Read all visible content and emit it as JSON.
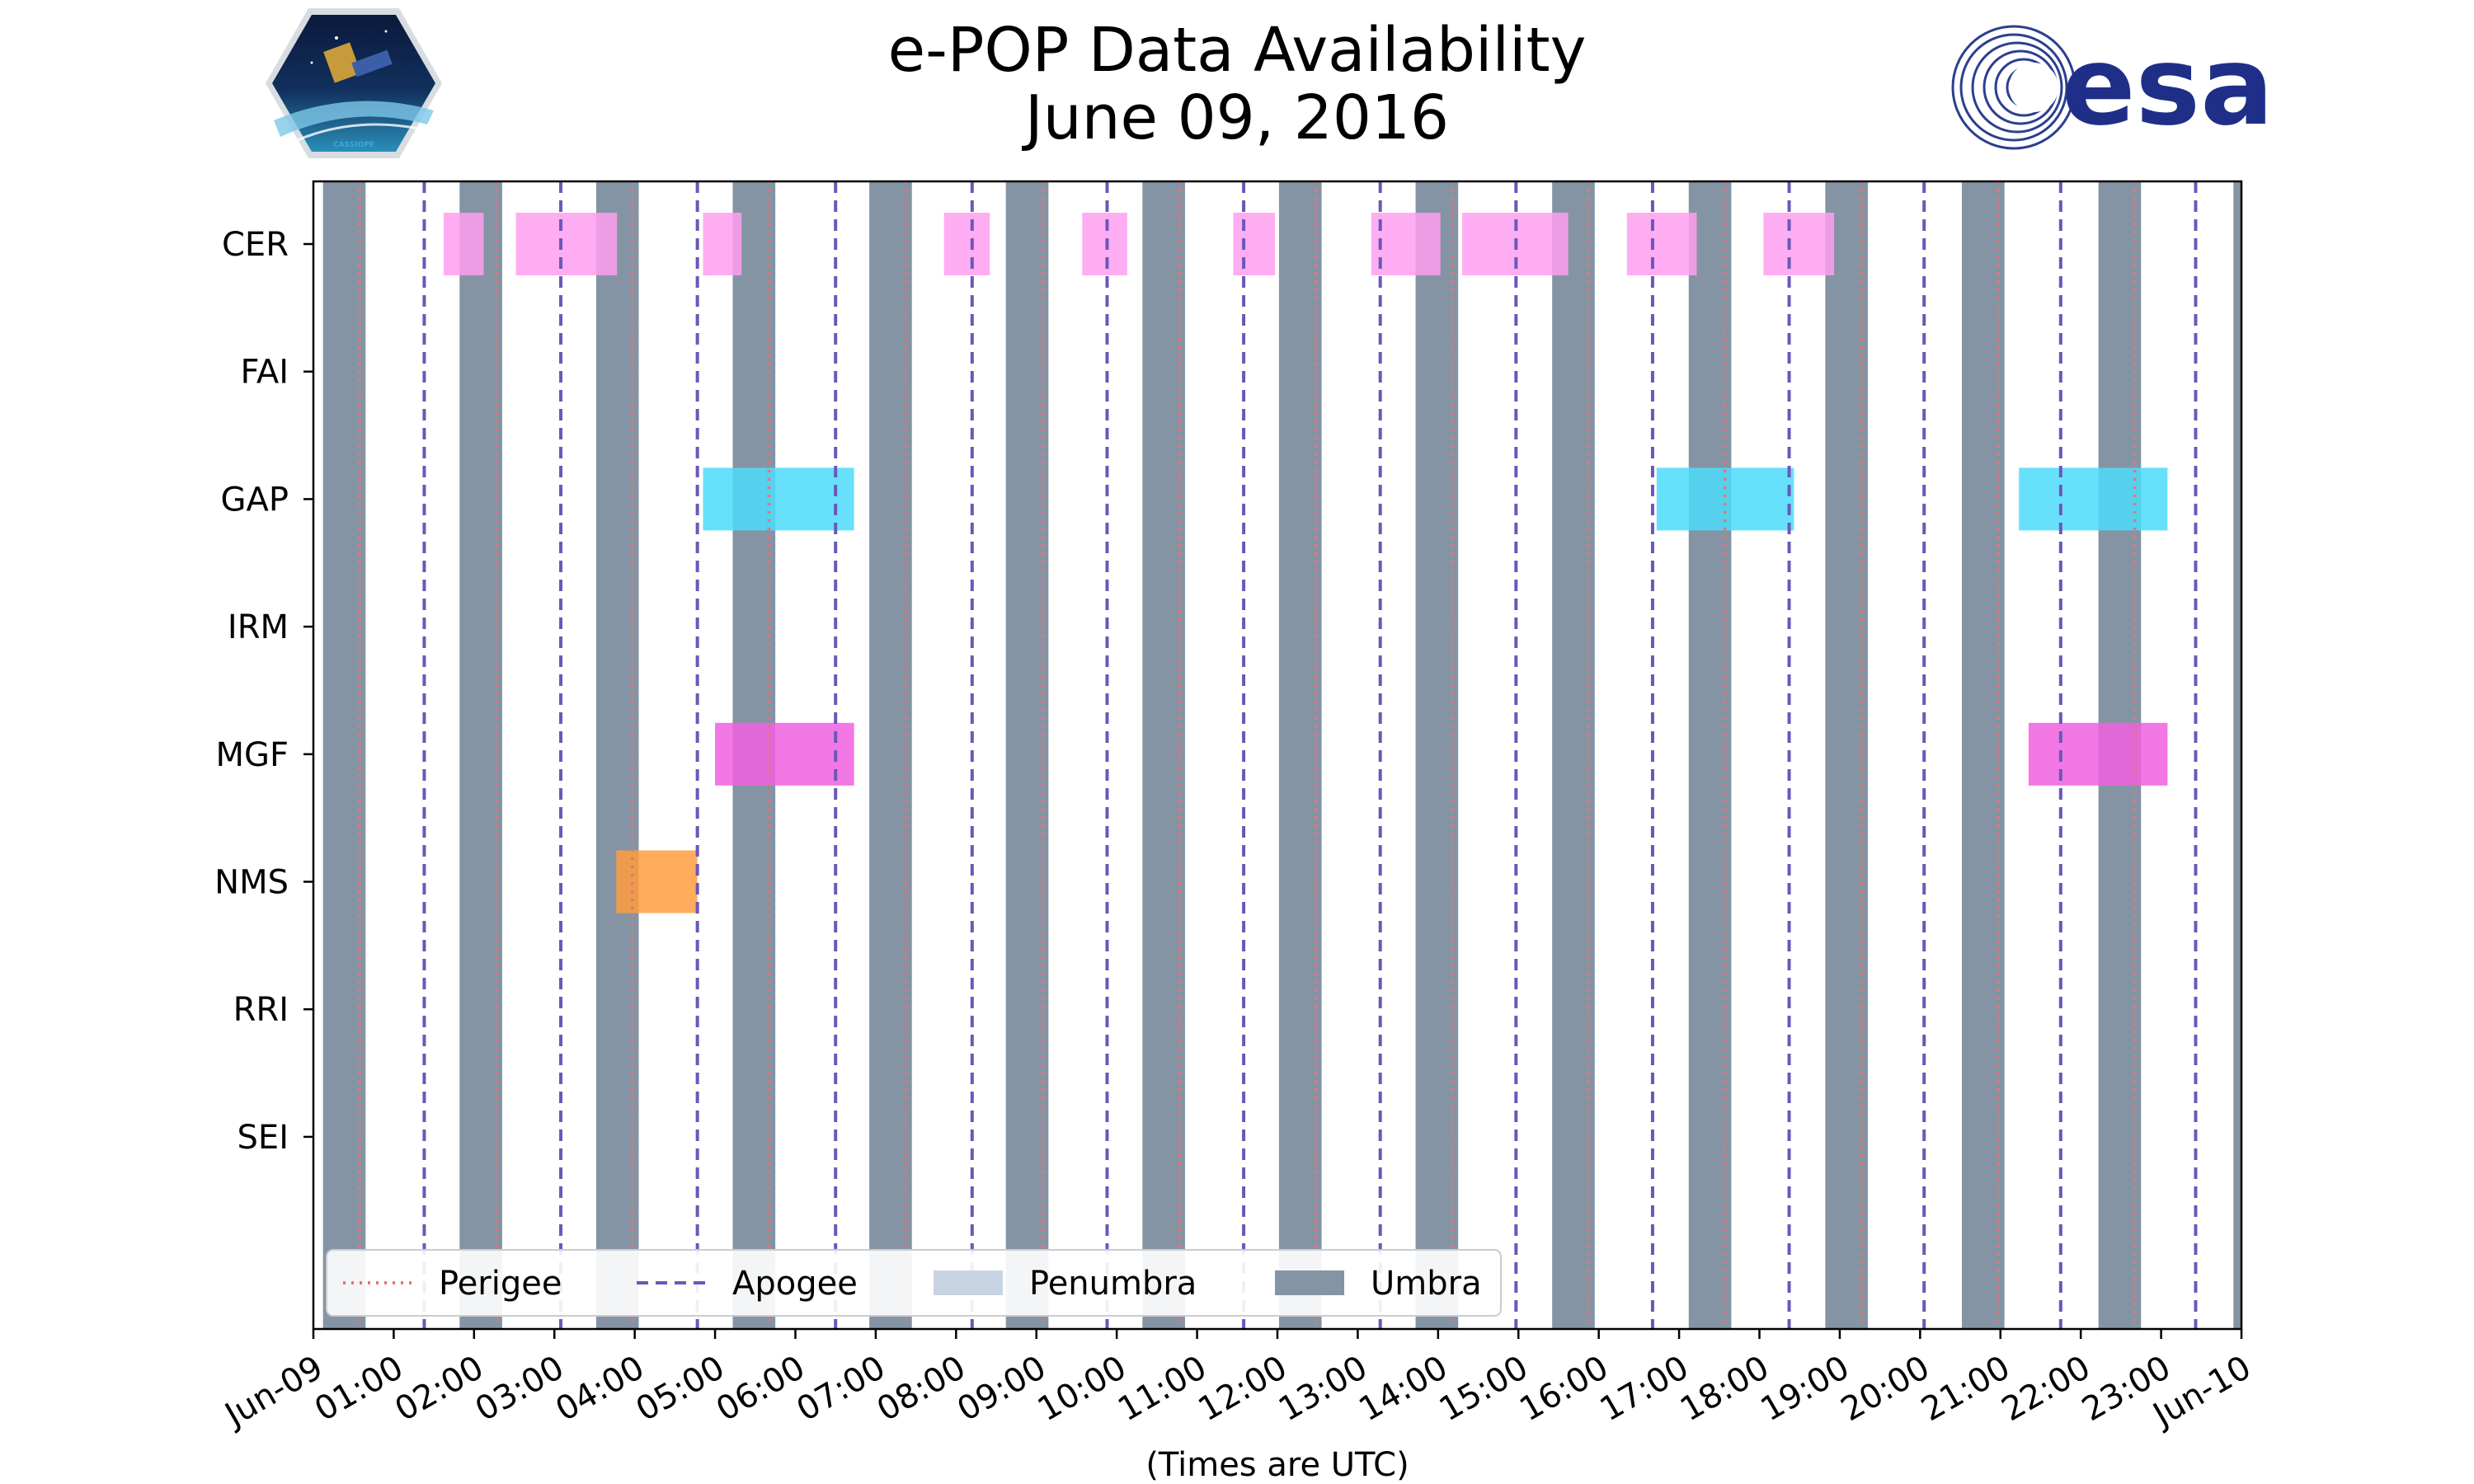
{
  "header": {
    "title": "e-POP Data Availability",
    "subtitle": "June 09, 2016",
    "left_logo_text": "CASSIOPE",
    "right_logo_text": "esa"
  },
  "chart_data": {
    "type": "timeline",
    "title": "e-POP Data Availability",
    "subtitle": "June 09, 2016",
    "xlabel": "(Times are UTC)",
    "ylabel": "",
    "xlim_hours": [
      0,
      24
    ],
    "x_tick_labels": [
      "Jun-09",
      "01:00",
      "02:00",
      "03:00",
      "04:00",
      "05:00",
      "06:00",
      "07:00",
      "08:00",
      "09:00",
      "10:00",
      "11:00",
      "12:00",
      "13:00",
      "14:00",
      "15:00",
      "16:00",
      "17:00",
      "18:00",
      "19:00",
      "20:00",
      "21:00",
      "22:00",
      "23:00",
      "Jun-10"
    ],
    "instruments": [
      "CER",
      "FAI",
      "GAP",
      "IRM",
      "MGF",
      "NMS",
      "RRI",
      "SEI"
    ],
    "colors": {
      "CER": "#ff9ff0",
      "GAP": "#4cdcfa",
      "MGF": "#f060e0",
      "NMS": "#ff9e40",
      "umbra": "#8494a4",
      "penumbra": "#c8d4e4",
      "perigee": "#f07070",
      "apogee": "#6a58b8"
    },
    "availability": {
      "CER": [
        [
          1.62,
          2.12
        ],
        [
          2.52,
          3.78
        ],
        [
          4.85,
          5.33
        ],
        [
          7.85,
          8.42
        ],
        [
          9.57,
          10.13
        ],
        [
          11.45,
          11.97
        ],
        [
          13.17,
          14.03
        ],
        [
          14.3,
          15.62
        ],
        [
          16.35,
          17.22
        ],
        [
          18.05,
          18.93
        ]
      ],
      "FAI": [],
      "GAP": [
        [
          4.85,
          6.73
        ],
        [
          16.72,
          18.43
        ],
        [
          21.23,
          23.08
        ]
      ],
      "IRM": [],
      "MGF": [
        [
          5.0,
          6.73
        ],
        [
          21.35,
          23.08
        ]
      ],
      "NMS": [
        [
          3.77,
          4.78
        ]
      ],
      "RRI": [],
      "SEI": []
    },
    "umbra_intervals": [
      [
        0.12,
        0.65
      ],
      [
        1.82,
        2.35
      ],
      [
        3.52,
        4.05
      ],
      [
        5.22,
        5.75
      ],
      [
        6.92,
        7.45
      ],
      [
        8.62,
        9.15
      ],
      [
        10.32,
        10.85
      ],
      [
        12.02,
        12.55
      ],
      [
        13.72,
        14.25
      ],
      [
        15.42,
        15.95
      ],
      [
        17.12,
        17.65
      ],
      [
        18.82,
        19.35
      ],
      [
        20.52,
        21.05
      ],
      [
        22.22,
        22.75
      ],
      [
        23.9,
        24.0
      ]
    ],
    "perigee_hours": [
      0.57,
      2.28,
      3.97,
      5.67,
      7.38,
      9.08,
      10.78,
      12.48,
      14.18,
      15.87,
      17.57,
      19.27,
      20.97,
      22.67
    ],
    "apogee_hours": [
      1.38,
      3.08,
      4.78,
      6.5,
      8.2,
      9.88,
      11.58,
      13.28,
      14.97,
      16.67,
      18.37,
      20.05,
      21.75,
      23.43
    ],
    "legend": {
      "placement": "lower-left",
      "items": [
        {
          "label": "Perigee",
          "style": "perigee"
        },
        {
          "label": "Apogee",
          "style": "apogee"
        },
        {
          "label": "Penumbra",
          "style": "penumbra"
        },
        {
          "label": "Umbra",
          "style": "umbra"
        }
      ]
    }
  }
}
